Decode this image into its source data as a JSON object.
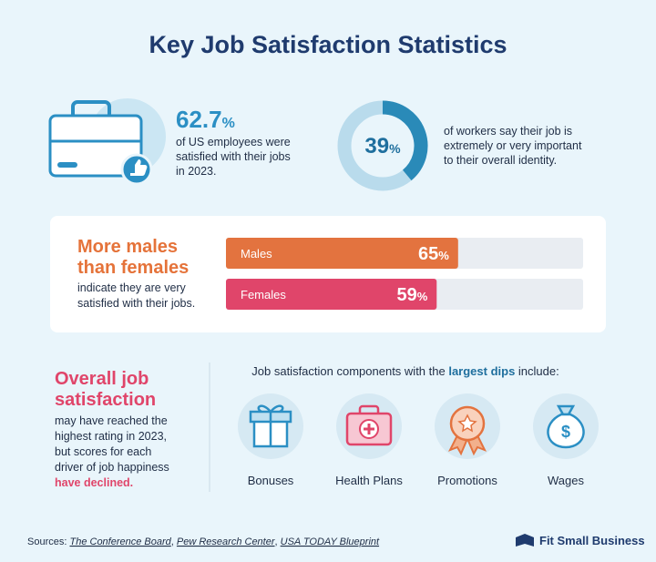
{
  "header": {
    "title": "Key Job Satisfaction Statistics"
  },
  "stat_employees": {
    "value": "62.7",
    "unit": "%",
    "text": [
      "of US employees were",
      "satisfied with their jobs",
      "in 2023."
    ]
  },
  "stat_identity": {
    "value": 39,
    "unit": "%",
    "text": [
      "of workers say their job is",
      "extremely or very important",
      "to their overall identity."
    ]
  },
  "gender": {
    "title": [
      "More males",
      "than females"
    ],
    "text": [
      "indicate they are very",
      "satisfied with their jobs."
    ],
    "unit": "%",
    "xlim": [
      0,
      100
    ],
    "bars": [
      {
        "label": "Males",
        "value": 65,
        "color": "#e3733f"
      },
      {
        "label": "Females",
        "value": 59,
        "color": "#e0456a"
      }
    ]
  },
  "overall": {
    "title": [
      "Overall job",
      "satisfaction"
    ],
    "text": [
      "may have reached the",
      "highest rating in 2023,",
      "but scores for each",
      "driver of job happiness"
    ],
    "highlight": "have declined."
  },
  "components": {
    "intro": "Job satisfaction components with the ",
    "emphasis": "largest dips",
    "outro": " include:",
    "items": [
      "Bonuses",
      "Health Plans",
      "Promotions",
      "Wages"
    ]
  },
  "footer": {
    "sources_label": "Sources:",
    "separator": ", ",
    "sources": [
      "The Conference Board",
      "Pew Research Center",
      "USA TODAY Blueprint"
    ],
    "brand": "Fit Small Business"
  }
}
